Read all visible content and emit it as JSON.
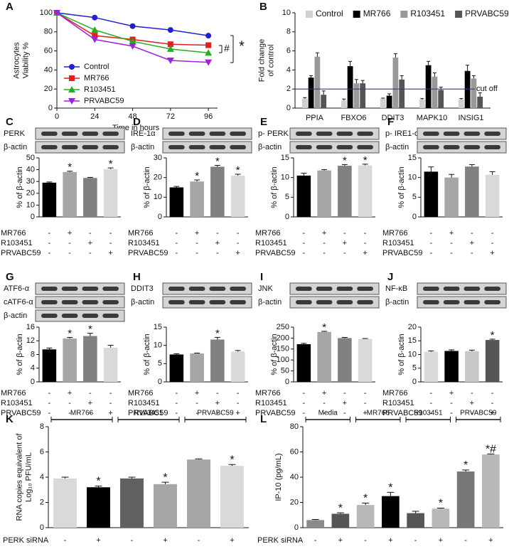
{
  "chart_data": [
    {
      "type": "line",
      "panel": "A",
      "ylabel": [
        "Astrocytes",
        "Viability %"
      ],
      "xlabel": "Time in hours",
      "x": [
        0,
        24,
        48,
        72,
        96
      ],
      "xlim": [
        0,
        100
      ],
      "xticks": [
        0,
        24,
        48,
        72,
        96
      ],
      "ylim": [
        0,
        100
      ],
      "yticks": [
        0,
        20,
        40,
        60,
        80,
        100
      ],
      "series": [
        {
          "name": "Control",
          "color": "#2020d0",
          "marker": "circle",
          "values": [
            100,
            95,
            86,
            82,
            76
          ]
        },
        {
          "name": "MR766",
          "color": "#e02020",
          "marker": "square",
          "values": [
            100,
            76,
            72,
            67,
            66
          ]
        },
        {
          "name": "R103451",
          "color": "#20b020",
          "marker": "triangle",
          "values": [
            100,
            82,
            70,
            62,
            58
          ]
        },
        {
          "name": "PRVABC59",
          "color": "#a020e0",
          "marker": "down-triangle",
          "values": [
            100,
            72,
            65,
            50,
            48
          ]
        }
      ],
      "annotations": [
        "#",
        "*"
      ]
    },
    {
      "type": "grouped_bar",
      "panel": "B",
      "ylabel": [
        "Fold change",
        "of control"
      ],
      "categories": [
        "PPIA",
        "FBXO6",
        "DDIT3",
        "MAPK10",
        "INSIG1"
      ],
      "ylim": [
        0,
        10
      ],
      "yticks": [
        0,
        2,
        4,
        6,
        8,
        10
      ],
      "series": [
        {
          "name": "Control",
          "color": "#d0d0d0",
          "values": [
            1.0,
            0.8,
            1.0,
            0.9,
            0.9
          ],
          "errors": [
            0.1,
            0.15,
            0.05,
            0.1,
            0.1
          ]
        },
        {
          "name": "MR766",
          "color": "#000000",
          "values": [
            3.2,
            4.4,
            1.3,
            4.5,
            3.9
          ],
          "errors": [
            0.2,
            0.5,
            0.2,
            0.4,
            0.6
          ]
        },
        {
          "name": "R103451",
          "color": "#999999",
          "values": [
            5.4,
            2.6,
            5.3,
            3.3,
            3.1
          ],
          "errors": [
            0.4,
            0.4,
            0.4,
            0.4,
            0.3
          ]
        },
        {
          "name": "PRVABC59",
          "color": "#555555",
          "values": [
            1.4,
            2.6,
            3.0,
            1.9,
            1.2
          ],
          "errors": [
            0.4,
            0.3,
            0.4,
            0.3,
            0.4
          ]
        }
      ],
      "reference_line": {
        "value": 2,
        "label": "cut off",
        "color": "#3030c0"
      }
    },
    {
      "type": "blot_bar",
      "panel": "C",
      "blots": [
        "PERK",
        "β-actin"
      ],
      "ylabel": "% of β-actin",
      "ylim": [
        0,
        50
      ],
      "yticks": [
        0,
        10,
        20,
        30,
        40,
        50
      ],
      "values": [
        29,
        38,
        33,
        40.5
      ],
      "errors": [
        0.6,
        0.7,
        0.5,
        1.0
      ],
      "colors": [
        "#000000",
        "#a6a6a6",
        "#808080",
        "#d9d9d9"
      ],
      "significance": [
        null,
        "*",
        null,
        "*"
      ],
      "conditions": [
        {
          "label": "MR766",
          "signs": [
            "-",
            "+",
            "-",
            "-"
          ]
        },
        {
          "label": "R103451",
          "signs": [
            "-",
            "-",
            "+",
            "-"
          ]
        },
        {
          "label": "PRVABC59",
          "signs": [
            "-",
            "-",
            "-",
            "+"
          ]
        }
      ]
    },
    {
      "type": "blot_bar",
      "panel": "D",
      "blots": [
        "IRE-1α",
        "β-actin"
      ],
      "ylabel": "% of β-actin",
      "ylim": [
        0,
        30
      ],
      "yticks": [
        0,
        10,
        20,
        30
      ],
      "values": [
        15,
        18,
        25.5,
        21
      ],
      "errors": [
        0.5,
        0.8,
        0.7,
        0.7
      ],
      "colors": [
        "#000000",
        "#a6a6a6",
        "#808080",
        "#d9d9d9"
      ],
      "significance": [
        null,
        "*",
        "*",
        "*"
      ],
      "conditions": [
        {
          "label": "MR766",
          "signs": [
            "-",
            "+",
            "-",
            "-"
          ]
        },
        {
          "label": "R103451",
          "signs": [
            "-",
            "-",
            "+",
            "-"
          ]
        },
        {
          "label": "PRVABC59",
          "signs": [
            "-",
            "-",
            "-",
            "+"
          ]
        }
      ]
    },
    {
      "type": "blot_bar",
      "panel": "E",
      "blots": [
        "p- PERK",
        "β-actin"
      ],
      "ylabel": "% of β-actin",
      "ylim": [
        0,
        15
      ],
      "yticks": [
        0,
        5,
        10,
        15
      ],
      "values": [
        10.5,
        11.8,
        13,
        13.1
      ],
      "errors": [
        0.6,
        0.2,
        0.3,
        0.3
      ],
      "colors": [
        "#000000",
        "#a6a6a6",
        "#808080",
        "#d9d9d9"
      ],
      "significance": [
        null,
        null,
        "*",
        "*"
      ],
      "conditions": [
        {
          "label": "MR766",
          "signs": [
            "-",
            "+",
            "-",
            "-"
          ]
        },
        {
          "label": "R103451",
          "signs": [
            "-",
            "-",
            "+",
            "-"
          ]
        },
        {
          "label": "PRVABC59",
          "signs": [
            "-",
            "-",
            "-",
            "+"
          ]
        }
      ]
    },
    {
      "type": "blot_bar",
      "panel": "F",
      "blots": [
        "p- IRE1-α",
        "β-actin"
      ],
      "ylabel": "% of β-actin",
      "ylim": [
        0,
        15
      ],
      "yticks": [
        0,
        5,
        10,
        15
      ],
      "values": [
        11.5,
        10,
        12.8,
        10.7
      ],
      "errors": [
        1.2,
        0.8,
        0.5,
        0.8
      ],
      "colors": [
        "#000000",
        "#a6a6a6",
        "#808080",
        "#d9d9d9"
      ],
      "significance": [
        null,
        null,
        null,
        null
      ],
      "conditions": [
        {
          "label": "MR766",
          "signs": [
            "-",
            "+",
            "-",
            "-"
          ]
        },
        {
          "label": "R103451",
          "signs": [
            "-",
            "-",
            "+",
            "-"
          ]
        },
        {
          "label": "PRVABC59",
          "signs": [
            "-",
            "-",
            "-",
            "+"
          ]
        }
      ]
    },
    {
      "type": "blot_bar",
      "panel": "G",
      "blots": [
        "ATF6-α",
        "cATF6-α",
        "β-actin"
      ],
      "ylabel": "% of β-actin",
      "ylim": [
        0,
        16
      ],
      "yticks": [
        0,
        4,
        8,
        12,
        16
      ],
      "values": [
        9.5,
        12.7,
        13.4,
        10
      ],
      "errors": [
        0.4,
        0.3,
        0.8,
        0.7
      ],
      "colors": [
        "#000000",
        "#a6a6a6",
        "#808080",
        "#d9d9d9"
      ],
      "significance": [
        null,
        "*",
        "*",
        null
      ],
      "conditions": [
        {
          "label": "MR766",
          "signs": [
            "-",
            "+",
            "-",
            "-"
          ]
        },
        {
          "label": "R103451",
          "signs": [
            "-",
            "-",
            "+",
            "-"
          ]
        },
        {
          "label": "PRVABC59",
          "signs": [
            "-",
            "-",
            "-",
            "+"
          ]
        }
      ]
    },
    {
      "type": "blot_bar",
      "panel": "H",
      "blots": [
        "DDIT3",
        "β-actin"
      ],
      "ylabel": "% of β-actin",
      "ylim": [
        0,
        15
      ],
      "yticks": [
        0,
        5,
        10,
        15
      ],
      "values": [
        7.5,
        7.8,
        11.6,
        8.3
      ],
      "errors": [
        0.2,
        0.1,
        0.6,
        0.3
      ],
      "colors": [
        "#000000",
        "#a6a6a6",
        "#808080",
        "#d9d9d9"
      ],
      "significance": [
        null,
        null,
        "*",
        null
      ],
      "conditions": [
        {
          "label": "MR766",
          "signs": [
            "-",
            "+",
            "-",
            "-"
          ]
        },
        {
          "label": "R103451",
          "signs": [
            "-",
            "-",
            "+",
            "-"
          ]
        },
        {
          "label": "PRVABC59",
          "signs": [
            "-",
            "-",
            "-",
            "+"
          ]
        }
      ]
    },
    {
      "type": "blot_bar",
      "panel": "I",
      "blots": [
        "JNK",
        "β-actin"
      ],
      "ylabel": "% of β-actin",
      "ylim": [
        0,
        250
      ],
      "yticks": [
        0,
        50,
        100,
        150,
        200,
        250
      ],
      "values": [
        172,
        228,
        200,
        196
      ],
      "errors": [
        4,
        3,
        3,
        2
      ],
      "colors": [
        "#000000",
        "#a6a6a6",
        "#808080",
        "#d9d9d9"
      ],
      "significance": [
        null,
        "*",
        null,
        null
      ],
      "conditions": [
        {
          "label": "MR766",
          "signs": [
            "-",
            "+",
            "-",
            "-"
          ]
        },
        {
          "label": "R103451",
          "signs": [
            "-",
            "-",
            "+",
            "-"
          ]
        },
        {
          "label": "PRVABC59",
          "signs": [
            "-",
            "-",
            "-",
            "+"
          ]
        }
      ]
    },
    {
      "type": "blot_bar",
      "panel": "J",
      "blots": [
        "NF-κB",
        "β-actin"
      ],
      "ylabel": "% of β-actin",
      "ylim": [
        0,
        20
      ],
      "yticks": [
        0,
        5,
        10,
        15,
        20
      ],
      "values": [
        11,
        11.3,
        11.2,
        15.3
      ],
      "errors": [
        0.3,
        0.4,
        0.4,
        0.3
      ],
      "colors": [
        "#d9d9d9",
        "#000000",
        "#c8c8c8",
        "#555555"
      ],
      "significance": [
        null,
        null,
        null,
        "*"
      ],
      "conditions": [
        {
          "label": "MR766",
          "signs": [
            "-",
            "+",
            "-",
            "-"
          ]
        },
        {
          "label": "R103451",
          "signs": [
            "-",
            "-",
            "+",
            "-"
          ]
        },
        {
          "label": "PRVABC59",
          "signs": [
            "-",
            "-",
            "-",
            "+"
          ]
        }
      ]
    },
    {
      "type": "group_bar",
      "panel": "K",
      "ylabel": [
        "RNA copies equivalent of",
        "Log₁₀ PFU/mL"
      ],
      "ylim": [
        0,
        8
      ],
      "yticks": [
        0,
        2,
        4,
        6,
        8
      ],
      "groups": [
        "MR766",
        "R103451",
        "PRVABC59"
      ],
      "values": [
        3.9,
        3.2,
        3.9,
        3.45,
        5.4,
        4.9
      ],
      "errors": [
        0.1,
        0.1,
        0.1,
        0.15,
        0.05,
        0.1
      ],
      "colors": [
        "#d9d9d9",
        "#000000",
        "#606060",
        "#a6a6a6",
        "#a6a6a6",
        "#d9d9d9"
      ],
      "significance": [
        null,
        "*",
        null,
        "*",
        null,
        "*"
      ],
      "treatment": {
        "label": "PERK siRNA",
        "signs": [
          "-",
          "+",
          "-",
          "+",
          "-",
          "+"
        ]
      }
    },
    {
      "type": "group_bar",
      "panel": "L",
      "ylabel": [
        "IP-10 (pg/mL)"
      ],
      "ylim": [
        0,
        80
      ],
      "yticks": [
        0,
        20,
        40,
        60,
        80
      ],
      "groups": [
        "Media",
        "MR766",
        "R103451",
        "PRVABC59"
      ],
      "values": [
        6,
        11,
        18,
        25,
        11.5,
        15,
        44.5,
        58
      ],
      "errors": [
        0.5,
        0.8,
        1.5,
        3,
        1.5,
        0.5,
        1.2,
        0.4
      ],
      "colors": [
        "#8a8a8a",
        "#555555",
        "#b8b8b8",
        "#000000",
        "#555555",
        "#b8b8b8",
        "#777777",
        "#b8b8b8"
      ],
      "significance": [
        null,
        "*",
        "*",
        "*",
        null,
        "*",
        "*",
        "*#"
      ],
      "treatment": {
        "label": "PERK siRNA",
        "signs": [
          "-",
          "+",
          "-",
          "+",
          "-",
          "+",
          "-",
          "+"
        ]
      }
    }
  ]
}
